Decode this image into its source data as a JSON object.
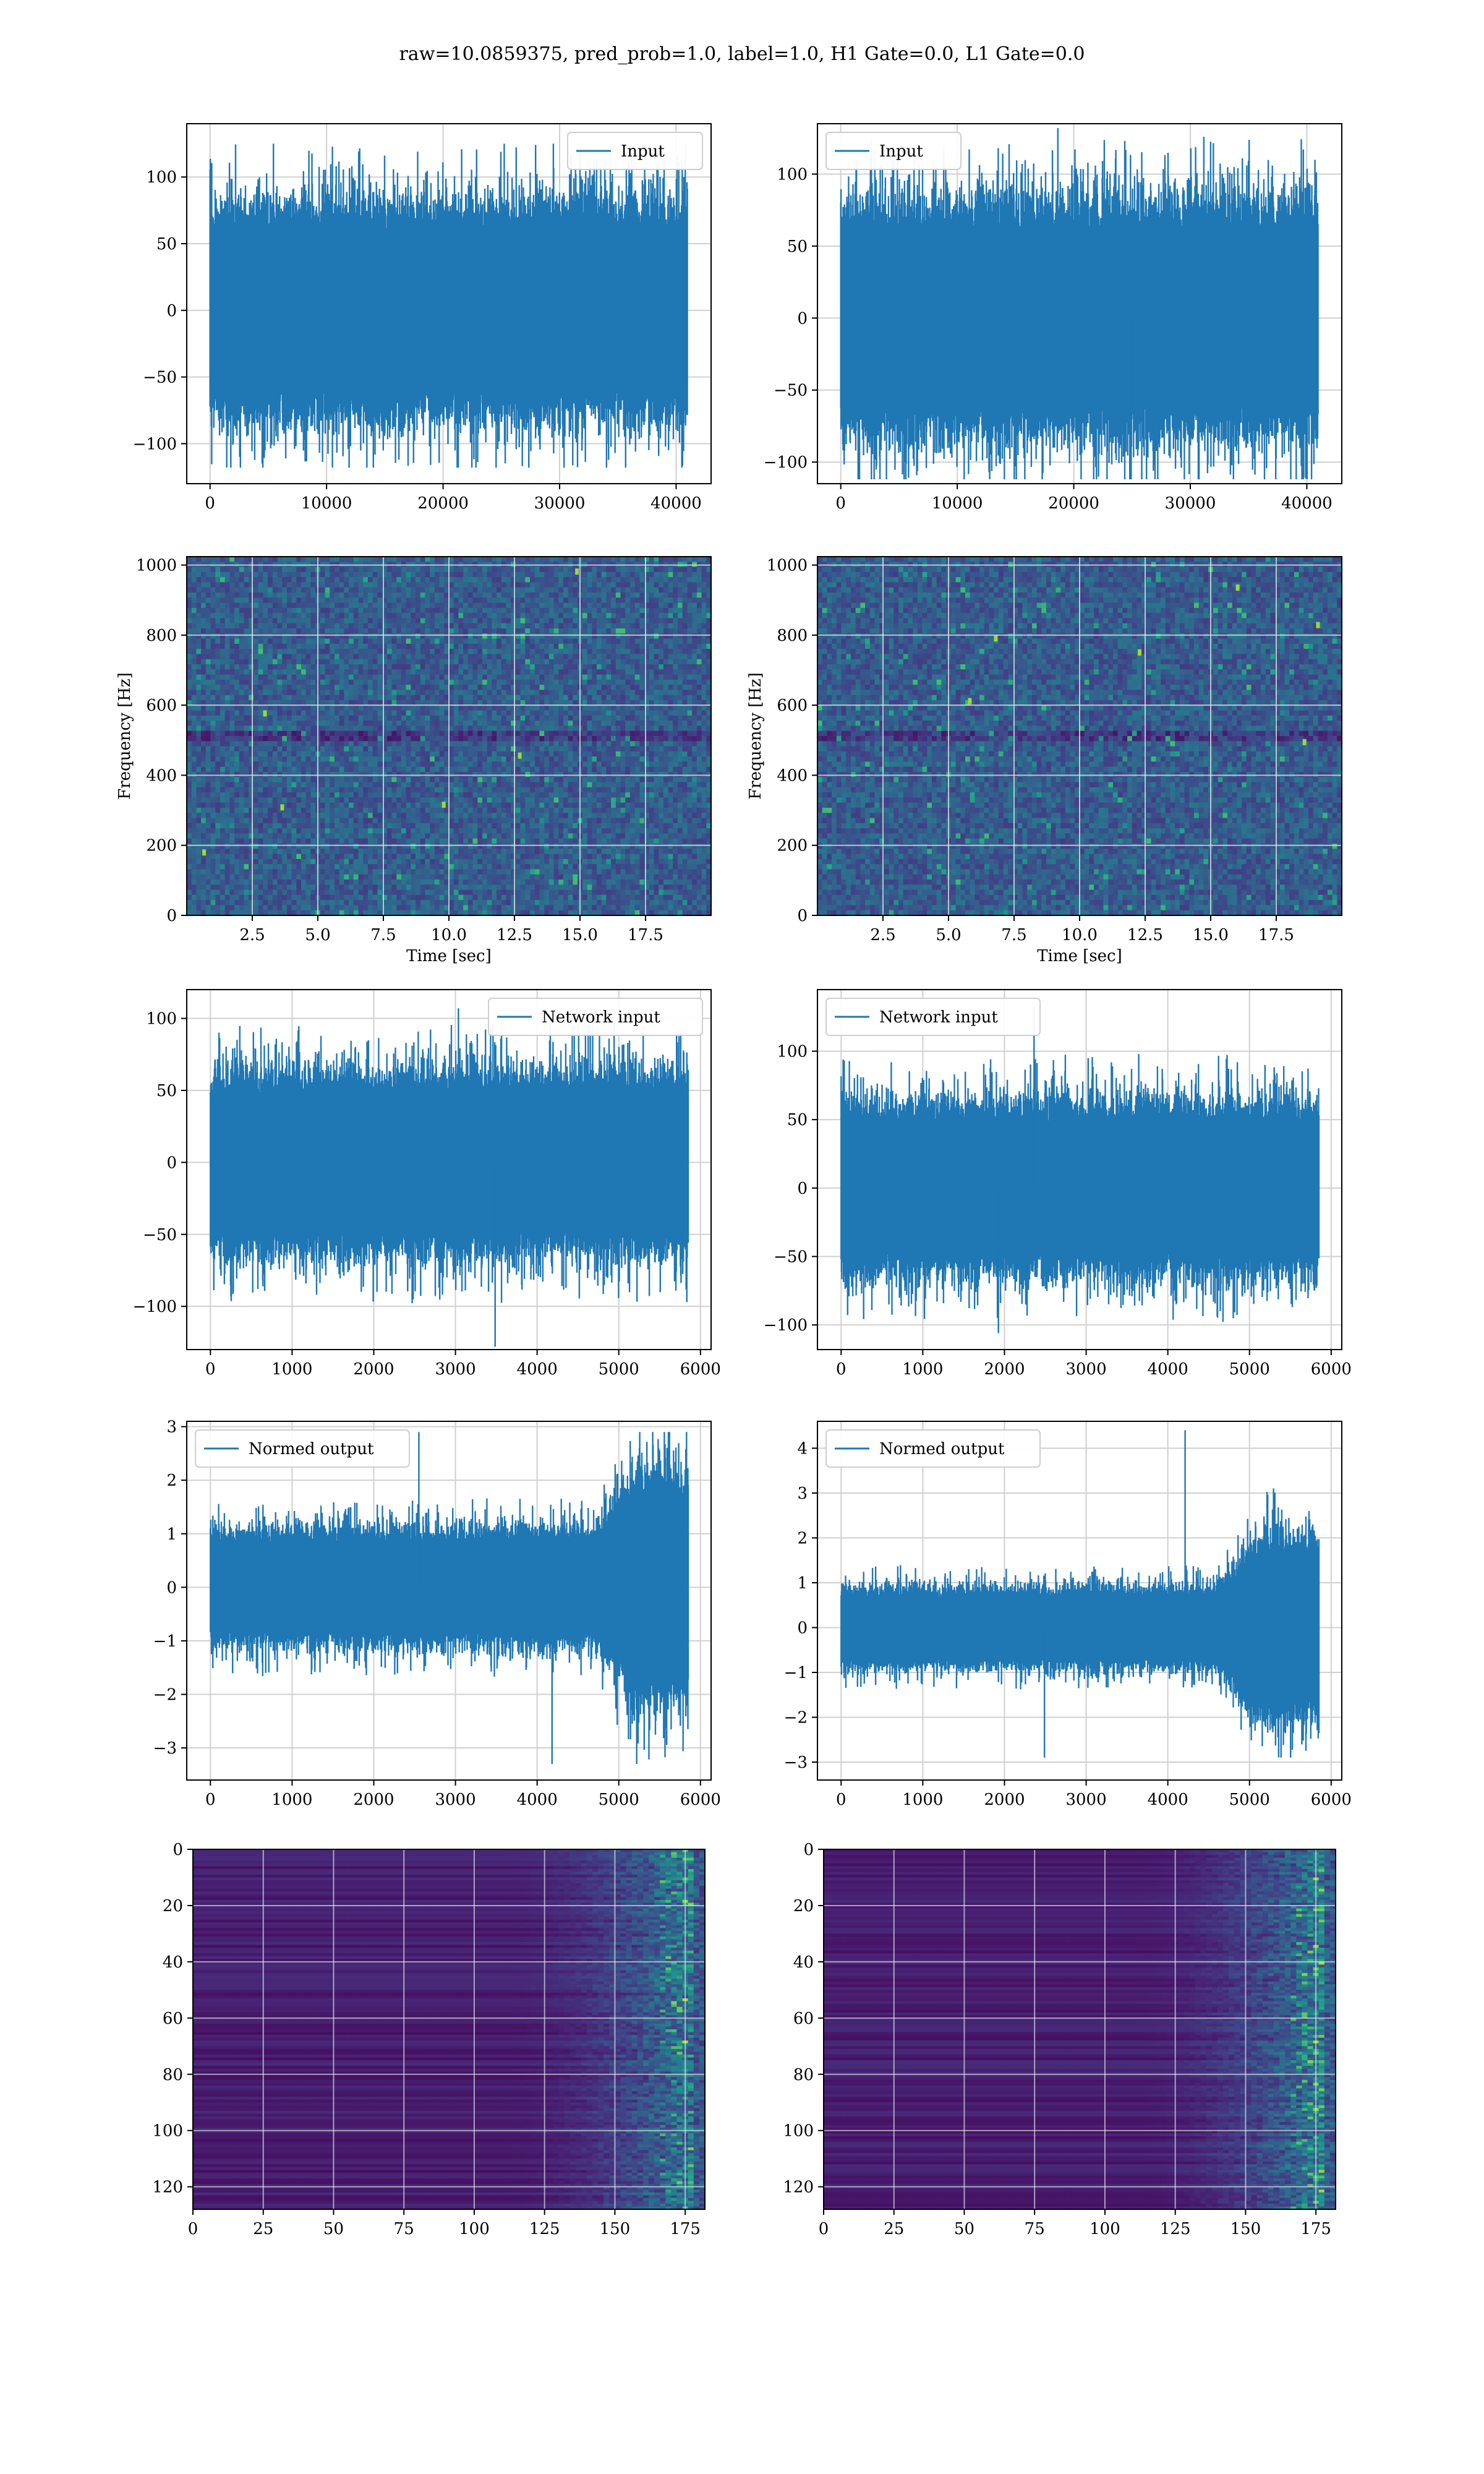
{
  "figure": {
    "title": "raw=10.0859375, pred_prob=1.0, label=1.0, H1 Gate=0.0, L1 Gate=0.0"
  },
  "colors": {
    "line": "#1f77b4",
    "viridis_dark": "#440154",
    "grid": "#d0d0d0"
  },
  "chart_data": [
    {
      "id": "r1c1",
      "type": "line",
      "legend": "Input",
      "legend_loc": "upper-right",
      "xlim": [
        -2000,
        43000
      ],
      "ylim": [
        -130,
        140
      ],
      "xticks": [
        0,
        10000,
        20000,
        30000,
        40000
      ],
      "xticklabels": [
        "0",
        "10000",
        "20000",
        "30000",
        "40000"
      ],
      "yticks": [
        -100,
        -50,
        0,
        50,
        100
      ],
      "yticklabels": [
        "−100",
        "−50",
        "0",
        "50",
        "100"
      ],
      "n_samples": 40960,
      "x_end": 40960,
      "amplitude": 90,
      "max": 125,
      "min": -118,
      "growth": null
    },
    {
      "id": "r1c2",
      "type": "line",
      "legend": "Input",
      "legend_loc": "upper-left",
      "xlim": [
        -2000,
        43000
      ],
      "ylim": [
        -115,
        135
      ],
      "xticks": [
        0,
        10000,
        20000,
        30000,
        40000
      ],
      "xticklabels": [
        "0",
        "10000",
        "20000",
        "30000",
        "40000"
      ],
      "yticks": [
        -100,
        -50,
        0,
        50,
        100
      ],
      "yticklabels": [
        "−100",
        "−50",
        "0",
        "50",
        "100"
      ],
      "n_samples": 40960,
      "x_end": 40960,
      "amplitude": 90,
      "max": 132,
      "min": -112,
      "growth": null
    },
    {
      "id": "r2c1",
      "type": "heatmap",
      "xlabel": "Time [sec]",
      "ylabel": "Frequency [Hz]",
      "xlim": [
        0,
        20
      ],
      "ylim": [
        0,
        1024
      ],
      "xticks": [
        2.5,
        5.0,
        7.5,
        10.0,
        12.5,
        15.0,
        17.5
      ],
      "xticklabels": [
        "2.5",
        "5.0",
        "7.5",
        "10.0",
        "12.5",
        "15.0",
        "17.5"
      ],
      "yticks": [
        0,
        200,
        400,
        600,
        800,
        1000
      ],
      "yticklabels": [
        "0",
        "200",
        "400",
        "600",
        "800",
        "1000"
      ]
    },
    {
      "id": "r2c2",
      "type": "heatmap",
      "xlabel": "Time [sec]",
      "ylabel": "Frequency [Hz]",
      "xlim": [
        0,
        20
      ],
      "ylim": [
        0,
        1024
      ],
      "xticks": [
        2.5,
        5.0,
        7.5,
        10.0,
        12.5,
        15.0,
        17.5
      ],
      "xticklabels": [
        "2.5",
        "5.0",
        "7.5",
        "10.0",
        "12.5",
        "15.0",
        "17.5"
      ],
      "yticks": [
        0,
        200,
        400,
        600,
        800,
        1000
      ],
      "yticklabels": [
        "0",
        "200",
        "400",
        "600",
        "800",
        "1000"
      ]
    },
    {
      "id": "r3c1",
      "type": "line",
      "legend": "Network input",
      "legend_loc": "upper-right",
      "xlim": [
        -290,
        6130
      ],
      "ylim": [
        -130,
        120
      ],
      "xticks": [
        0,
        1000,
        2000,
        3000,
        4000,
        5000,
        6000
      ],
      "xticklabels": [
        "0",
        "1000",
        "2000",
        "3000",
        "4000",
        "5000",
        "6000"
      ],
      "yticks": [
        -100,
        -50,
        0,
        50,
        100
      ],
      "yticklabels": [
        "−100",
        "−50",
        "0",
        "50",
        "100"
      ],
      "n_samples": 5850,
      "x_end": 5850,
      "amplitude": 70,
      "max": 107,
      "min": -128,
      "growth": null
    },
    {
      "id": "r3c2",
      "type": "line",
      "legend": "Network input",
      "legend_loc": "upper-left",
      "xlim": [
        -290,
        6130
      ],
      "ylim": [
        -118,
        145
      ],
      "xticks": [
        0,
        1000,
        2000,
        3000,
        4000,
        5000,
        6000
      ],
      "xticklabels": [
        "0",
        "1000",
        "2000",
        "3000",
        "4000",
        "5000",
        "6000"
      ],
      "yticks": [
        -100,
        -50,
        0,
        50,
        100
      ],
      "yticklabels": [
        "−100",
        "−50",
        "0",
        "50",
        "100"
      ],
      "n_samples": 5850,
      "x_end": 5850,
      "amplitude": 70,
      "max": 133,
      "min": -106,
      "growth": null
    },
    {
      "id": "r4c1",
      "type": "line",
      "legend": "Normed output",
      "legend_loc": "upper-left",
      "xlim": [
        -290,
        6130
      ],
      "ylim": [
        -3.6,
        3.1
      ],
      "xticks": [
        0,
        1000,
        2000,
        3000,
        4000,
        5000,
        6000
      ],
      "xticklabels": [
        "0",
        "1000",
        "2000",
        "3000",
        "4000",
        "5000",
        "6000"
      ],
      "yticks": [
        -3,
        -2,
        -1,
        0,
        1,
        2,
        3
      ],
      "yticklabels": [
        "−3",
        "−2",
        "−1",
        "0",
        "1",
        "2",
        "3"
      ],
      "n_samples": 5850,
      "x_end": 5850,
      "amplitude": 1.2,
      "max": 2.9,
      "min": -3.3,
      "growth": [
        4700,
        2.0
      ]
    },
    {
      "id": "r4c2",
      "type": "line",
      "legend": "Normed output",
      "legend_loc": "upper-left",
      "xlim": [
        -290,
        6130
      ],
      "ylim": [
        -3.4,
        4.6
      ],
      "xticks": [
        0,
        1000,
        2000,
        3000,
        4000,
        5000,
        6000
      ],
      "xticklabels": [
        "0",
        "1000",
        "2000",
        "3000",
        "4000",
        "5000",
        "6000"
      ],
      "yticks": [
        -3,
        -2,
        -1,
        0,
        1,
        2,
        3,
        4
      ],
      "yticklabels": [
        "−3",
        "−2",
        "−1",
        "0",
        "1",
        "2",
        "3",
        "4"
      ],
      "n_samples": 5850,
      "x_end": 5850,
      "amplitude": 1.0,
      "max": 4.4,
      "min": -2.9,
      "growth": [
        4600,
        2.3
      ]
    },
    {
      "id": "r5c1",
      "type": "heatmap",
      "inverted_y": true,
      "xlim": [
        0,
        182
      ],
      "ylim": [
        128,
        0
      ],
      "xticks": [
        0,
        25,
        50,
        75,
        100,
        125,
        150,
        175
      ],
      "xticklabels": [
        "0",
        "25",
        "50",
        "75",
        "100",
        "125",
        "150",
        "175"
      ],
      "yticks": [
        0,
        20,
        40,
        60,
        80,
        100,
        120
      ],
      "yticklabels": [
        "0",
        "20",
        "40",
        "60",
        "80",
        "100",
        "120"
      ]
    },
    {
      "id": "r5c2",
      "type": "heatmap",
      "inverted_y": true,
      "xlim": [
        0,
        182
      ],
      "ylim": [
        128,
        0
      ],
      "xticks": [
        0,
        25,
        50,
        75,
        100,
        125,
        150,
        175
      ],
      "xticklabels": [
        "0",
        "25",
        "50",
        "75",
        "100",
        "125",
        "150",
        "175"
      ],
      "yticks": [
        0,
        20,
        40,
        60,
        80,
        100,
        120
      ],
      "yticklabels": [
        "0",
        "20",
        "40",
        "60",
        "80",
        "100",
        "120"
      ]
    }
  ]
}
